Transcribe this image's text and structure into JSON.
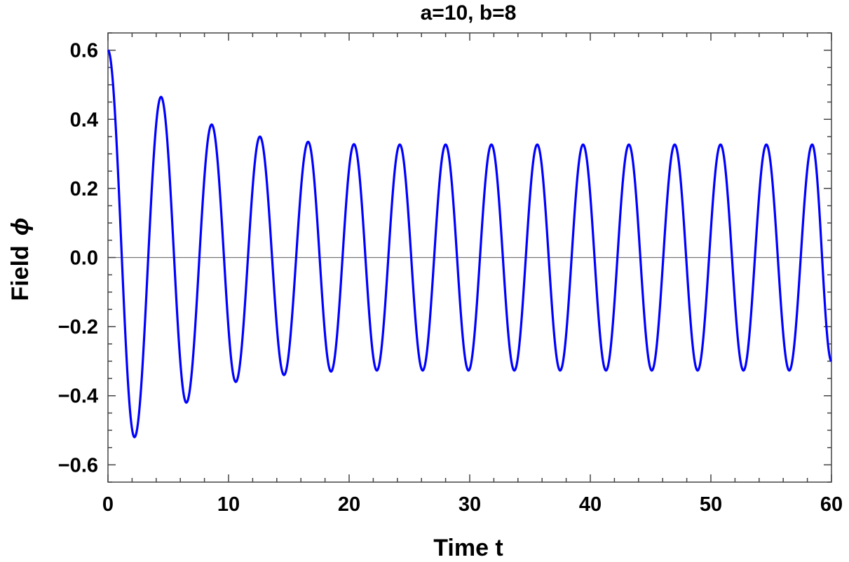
{
  "chart_data": {
    "type": "line",
    "title": "a=10, b=8",
    "xlabel": "Time t",
    "ylabel_text": "Field",
    "ylabel_symbol": "ϕ",
    "xlim": [
      0,
      60
    ],
    "ylim": [
      -0.65,
      0.65
    ],
    "grid": false,
    "x_ticks": [
      0,
      10,
      20,
      30,
      40,
      50,
      60
    ],
    "x_tick_labels": [
      "0",
      "10",
      "20",
      "30",
      "40",
      "50",
      "60"
    ],
    "y_ticks": [
      -0.6,
      -0.4,
      -0.2,
      0.0,
      0.2,
      0.4,
      0.6
    ],
    "y_tick_labels": [
      "−0.6",
      "−0.4",
      "−0.2",
      "0.0",
      "0.2",
      "0.4",
      "0.6"
    ],
    "zero_line": true,
    "series": [
      {
        "color": "#0000ff",
        "extrema": [
          {
            "x": 0.0,
            "y": 0.6
          },
          {
            "x": 2.2,
            "y": -0.52
          },
          {
            "x": 4.4,
            "y": 0.465
          },
          {
            "x": 6.5,
            "y": -0.42
          },
          {
            "x": 8.6,
            "y": 0.385
          },
          {
            "x": 10.6,
            "y": -0.36
          },
          {
            "x": 12.6,
            "y": 0.35
          },
          {
            "x": 14.6,
            "y": -0.34
          },
          {
            "x": 16.6,
            "y": 0.335
          },
          {
            "x": 18.5,
            "y": -0.33
          },
          {
            "x": 20.4,
            "y": 0.328
          },
          {
            "x": 22.3,
            "y": -0.327
          },
          {
            "x": 24.2,
            "y": 0.327
          },
          {
            "x": 26.1,
            "y": -0.327
          },
          {
            "x": 28.0,
            "y": 0.327
          },
          {
            "x": 29.9,
            "y": -0.327
          },
          {
            "x": 31.8,
            "y": 0.327
          },
          {
            "x": 33.7,
            "y": -0.327
          },
          {
            "x": 35.6,
            "y": 0.327
          },
          {
            "x": 37.5,
            "y": -0.327
          },
          {
            "x": 39.4,
            "y": 0.327
          },
          {
            "x": 41.3,
            "y": -0.327
          },
          {
            "x": 43.2,
            "y": 0.327
          },
          {
            "x": 45.1,
            "y": -0.327
          },
          {
            "x": 47.0,
            "y": 0.327
          },
          {
            "x": 48.9,
            "y": -0.327
          },
          {
            "x": 50.8,
            "y": 0.327
          },
          {
            "x": 52.7,
            "y": -0.327
          },
          {
            "x": 54.6,
            "y": 0.327
          },
          {
            "x": 56.5,
            "y": -0.327
          },
          {
            "x": 58.4,
            "y": 0.327
          },
          {
            "x": 60.0,
            "y": -0.3
          }
        ]
      }
    ]
  }
}
